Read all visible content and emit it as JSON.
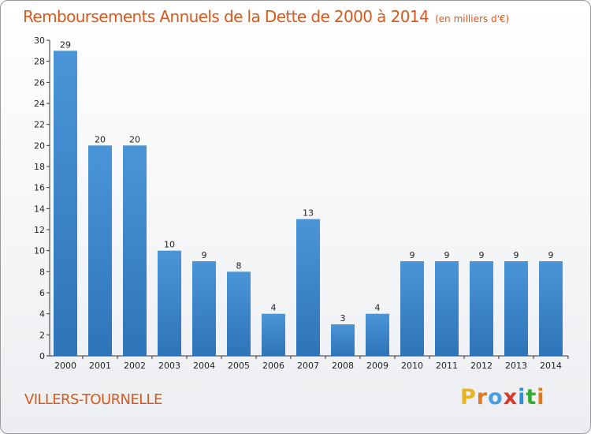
{
  "chart_data": {
    "type": "bar",
    "title": "Remboursements Annuels de la Dette de 2000 à 2014",
    "subtitle": "(en milliers d'€)",
    "categories": [
      "2000",
      "2001",
      "2002",
      "2003",
      "2004",
      "2005",
      "2006",
      "2007",
      "2008",
      "2009",
      "2010",
      "2011",
      "2012",
      "2013",
      "2014"
    ],
    "values": [
      29,
      20,
      20,
      10,
      9,
      8,
      4,
      13,
      3,
      4,
      9,
      9,
      9,
      9,
      9
    ],
    "ylim": [
      0,
      30
    ],
    "yticks": [
      0,
      2,
      4,
      6,
      8,
      10,
      12,
      14,
      16,
      18,
      20,
      22,
      24,
      26,
      28,
      30
    ],
    "grid": false,
    "bar_color": "#4a95d8",
    "bar_color_dark": "#2e74b8"
  },
  "footer": {
    "commune": "VILLERS-TOURNELLE",
    "logo_letters": [
      "P",
      "r",
      "o",
      "x",
      "i",
      "t",
      "i"
    ],
    "logo_colors": [
      "#e8b422",
      "#e07a1e",
      "#4a9ee0",
      "#d63a2a",
      "#2f8fd6",
      "#3aa835",
      "#e07a1e"
    ]
  }
}
